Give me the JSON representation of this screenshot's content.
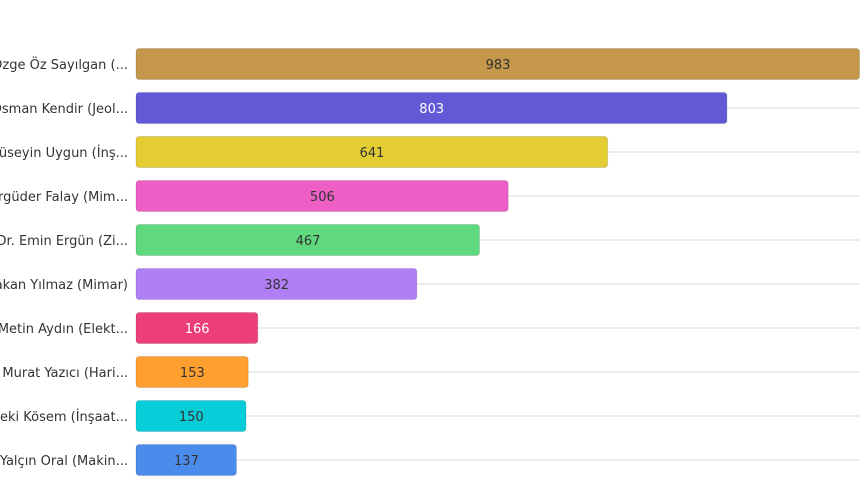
{
  "chart_data": {
    "type": "bar",
    "orientation": "horizontal",
    "categories": [
      "Özge Öz Sayılgan (...",
      "Osman Kendir (Jeol...",
      "Hüseyin Uygun (İnş...",
      "Ergüder Falay (Mim...",
      "Dr. Emin Ergün (Zi...",
      "Hakan Yılmaz (Mimar)",
      "Metin Aydın (Elekt...",
      "Murat Yazıcı (Hari...",
      "Zeki Kösem (İnşaat...",
      "Yalçın Oral (Makin..."
    ],
    "values": [
      983,
      803,
      641,
      506,
      467,
      382,
      166,
      153,
      150,
      137
    ],
    "colors": [
      "#C4974B",
      "#6358D6",
      "#E4CD33",
      "#EE5FC6",
      "#5FD87E",
      "#B07EF5",
      "#EC3F77",
      "#FF9F30",
      "#06CDD8",
      "#4A8CEB"
    ],
    "label_colors": [
      "#333333",
      "#ffffff",
      "#333333",
      "#333333",
      "#333333",
      "#333333",
      "#ffffff",
      "#333333",
      "#333333",
      "#333333"
    ],
    "xlim": [
      0,
      983
    ],
    "grid": "horizontal",
    "legend": "none"
  }
}
